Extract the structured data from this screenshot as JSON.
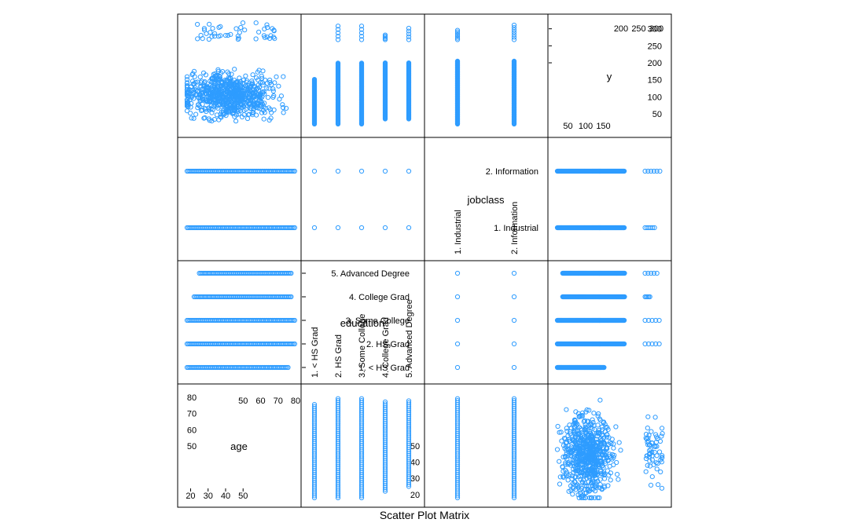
{
  "chart_data": {
    "type": "scatter",
    "title": "Scatter Plot Matrix",
    "variables": [
      {
        "name": "age",
        "kind": "numeric",
        "range": [
          18,
          80
        ],
        "ticks_low": [
          "20",
          "30",
          "40",
          "50"
        ],
        "ticks_high": [
          "50",
          "60",
          "70",
          "80"
        ]
      },
      {
        "name": "education",
        "kind": "factor",
        "levels": [
          "1. < HS Grad",
          "2. HS Grad",
          "3. Some College",
          "4. College Grad",
          "5. Advanced Degree"
        ]
      },
      {
        "name": "jobclass",
        "kind": "factor",
        "levels": [
          "1. Industrial",
          "2. Information"
        ]
      },
      {
        "name": "y",
        "kind": "numeric",
        "range": [
          20,
          318
        ],
        "ticks_low": [
          "50",
          "100",
          "150"
        ],
        "ticks_high": [
          "200",
          "250",
          "300"
        ]
      }
    ],
    "panel_data": {
      "age_by_education": [
        {
          "level": "1. < HS Grad",
          "age_range": [
            18,
            76
          ]
        },
        {
          "level": "2. HS Grad",
          "age_range": [
            18,
            80
          ]
        },
        {
          "level": "3. Some College",
          "age_range": [
            18,
            80
          ]
        },
        {
          "level": "4. College Grad",
          "age_range": [
            22,
            78
          ]
        },
        {
          "level": "5. Advanced Degree",
          "age_range": [
            25,
            78
          ]
        }
      ],
      "age_by_jobclass": [
        {
          "level": "1. Industrial",
          "age_range": [
            18,
            80
          ]
        },
        {
          "level": "2. Information",
          "age_range": [
            18,
            80
          ]
        }
      ],
      "y_by_education": [
        {
          "level": "1. < HS Grad",
          "y_range": [
            20,
            152
          ]
        },
        {
          "level": "2. HS Grad",
          "y_range": [
            20,
            318
          ]
        },
        {
          "level": "3. Some College",
          "y_range": [
            20,
            318
          ]
        },
        {
          "level": "4. College Grad",
          "y_range": [
            35,
            285
          ]
        },
        {
          "level": "5. Advanced Degree",
          "y_range": [
            35,
            310
          ]
        }
      ],
      "y_by_jobclass": [
        {
          "level": "1. Industrial",
          "y_range": [
            20,
            300
          ]
        },
        {
          "level": "2. Information",
          "y_range": [
            20,
            318
          ]
        }
      ],
      "age_range_by_y": [
        {
          "y_band": [
            20,
            150
          ],
          "age_range": [
            18,
            80
          ]
        },
        {
          "y_band": [
            265,
            318
          ],
          "age_range": [
            22,
            68
          ]
        }
      ]
    },
    "point_style": "open circle",
    "point_color": "#2e9cff",
    "grid": false,
    "legend": "none"
  }
}
